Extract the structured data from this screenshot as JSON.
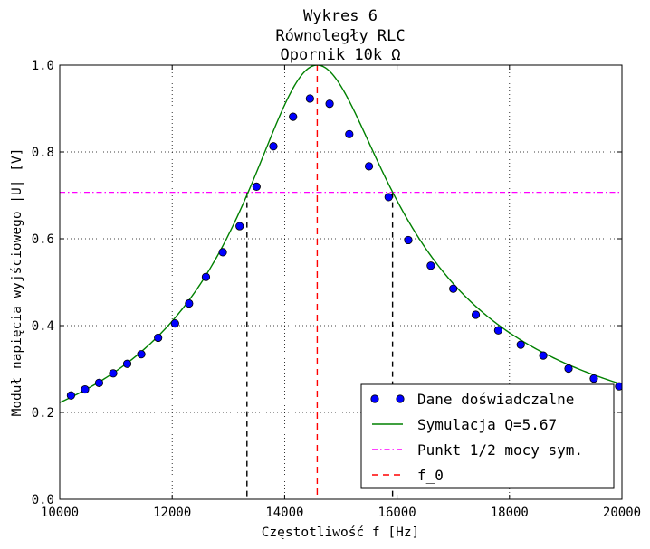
{
  "chart_data": {
    "type": "line",
    "title_lines": [
      "Wykres 6",
      "Równoległy RLC",
      "Opornik 10k Ω"
    ],
    "xlabel": "Częstotliwość f [Hz]",
    "ylabel": "Moduł napięcia wyjściowego |U| [V]",
    "xlim": [
      10000,
      20000
    ],
    "ylim": [
      0.0,
      1.0
    ],
    "x_ticks": [
      10000,
      12000,
      14000,
      16000,
      18000,
      20000
    ],
    "y_ticks": [
      0.0,
      0.2,
      0.4,
      0.6,
      0.8,
      1.0
    ],
    "x_tick_labels": [
      "10000",
      "12000",
      "14000",
      "16000",
      "18000",
      "20000"
    ],
    "y_tick_labels": [
      "0.0",
      "0.2",
      "0.4",
      "0.6",
      "0.8",
      "1.0"
    ],
    "grid": true,
    "legend_position": "lower-right",
    "series": [
      {
        "name": "Dane doświadczalne",
        "kind": "scatter",
        "color": "#0000ff",
        "x": [
          10200,
          10450,
          10700,
          10950,
          11200,
          11450,
          11750,
          12050,
          12300,
          12600,
          12900,
          13200,
          13500,
          13800,
          14150,
          14450,
          14800,
          15150,
          15500,
          15850,
          16200,
          16600,
          17000,
          17400,
          17800,
          18200,
          18600,
          19050,
          19500,
          19950
        ],
        "y": [
          0.239,
          0.253,
          0.268,
          0.29,
          0.312,
          0.334,
          0.372,
          0.405,
          0.451,
          0.512,
          0.569,
          0.629,
          0.72,
          0.813,
          0.881,
          0.923,
          0.911,
          0.841,
          0.767,
          0.696,
          0.597,
          0.538,
          0.485,
          0.425,
          0.389,
          0.356,
          0.331,
          0.301,
          0.278,
          0.26
        ]
      },
      {
        "name": "Symulacja Q=5.67",
        "kind": "curve",
        "color": "#008000",
        "f0": 14580,
        "Q": 5.67,
        "peak": 1.0
      },
      {
        "name": "Punkt 1/2 mocy sym.",
        "kind": "hline",
        "color": "#ff00ff",
        "y": 0.707
      },
      {
        "name": "f_0",
        "kind": "vline",
        "color": "#ff0000",
        "x": 14580
      }
    ],
    "guide_lines": [
      {
        "kind": "vline",
        "color": "#000000",
        "x": 13330,
        "y_top": 0.707
      },
      {
        "kind": "vline",
        "color": "#000000",
        "x": 15920,
        "y_top": 0.707
      }
    ]
  }
}
